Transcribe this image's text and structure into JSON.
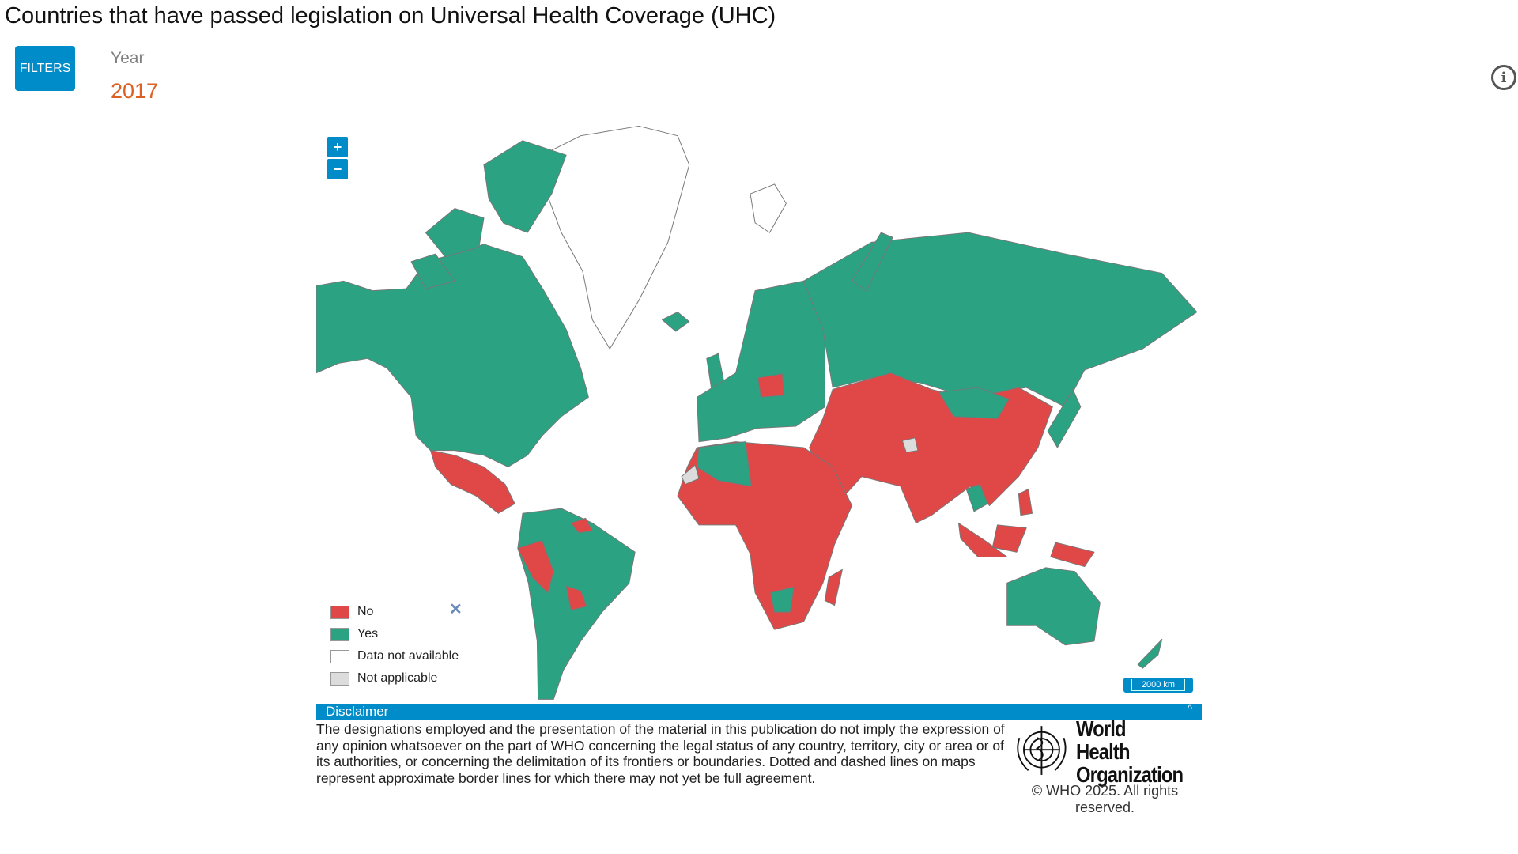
{
  "title": "Countries that have passed legislation on Universal Health Coverage (UHC)",
  "filters_label": "FILTERS",
  "filter": {
    "label": "Year",
    "value": "2017"
  },
  "info_icon": "info-circle-icon",
  "map": {
    "zoom_in": "+",
    "zoom_out": "−",
    "scale": "2000 km",
    "legend": {
      "close": "✕",
      "items": [
        {
          "label": "No",
          "color": "#e04848"
        },
        {
          "label": "Yes",
          "color": "#2ba383"
        },
        {
          "label": "Data not available",
          "color": "#ffffff"
        },
        {
          "label": "Not applicable",
          "color": "#dcdcdc"
        }
      ]
    }
  },
  "disclaimer": {
    "title": "Disclaimer",
    "toggle": "^",
    "text": "The designations employed and the presentation of the material in this publication do not imply the expression of any opinion whatsoever on the part of WHO concerning the legal status of any country, territory, city or area or of its authorities, or concerning the delimitation of its frontiers or boundaries. Dotted and dashed lines on maps represent approximate border lines for which there may not yet be full agreement."
  },
  "logo": {
    "line1": "World Health",
    "line2": "Organization"
  },
  "copyright": "© WHO 2025. All rights reserved."
}
